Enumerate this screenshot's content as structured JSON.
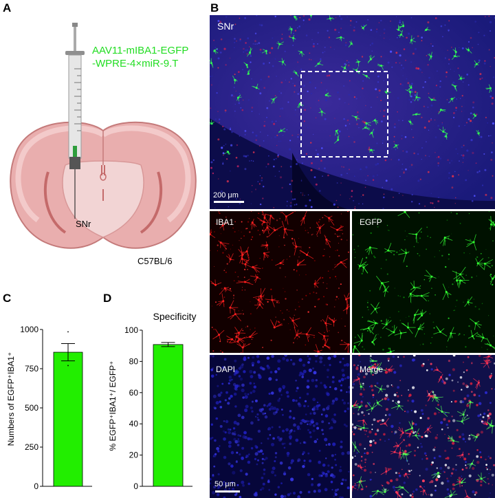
{
  "panels": {
    "a": "A",
    "b": "B",
    "c": "C",
    "d": "D"
  },
  "panel_a": {
    "vector_line1": "AAV11-mIBA1-EGFP",
    "vector_line2": "-WPRE-4×miR-9.T",
    "target_label": "SNr",
    "strain_label": "C57BL/6",
    "vector_color": "#22dd22"
  },
  "panel_b": {
    "region_label": "SNr",
    "scale_top": "200 μm",
    "iba1_label": "IBA1",
    "egfp_label": "EGFP",
    "dapi_label": "DAPI",
    "merge_label": "Merge",
    "scale_bottom": "50 μm"
  },
  "chart_data": [
    {
      "type": "bar",
      "panel": "C",
      "title": "",
      "ylabel": "Numbers of EGFP⁺IBA1⁺",
      "yticks": [
        "0",
        "250",
        "500",
        "750",
        "1000"
      ],
      "ylim": [
        0,
        1000
      ],
      "values": [
        855
      ],
      "error": [
        55
      ],
      "points": [
        985,
        770
      ],
      "color": "#22ee00"
    },
    {
      "type": "bar",
      "panel": "D",
      "title": "Specificity",
      "ylabel": "% EGFP⁺IBA1⁺/ EGFP⁺",
      "yticks": [
        "0",
        "20",
        "40",
        "60",
        "80",
        "100"
      ],
      "ylim": [
        0,
        100
      ],
      "values": [
        90.8
      ],
      "error": [
        1.3
      ],
      "color": "#22ee00"
    }
  ]
}
